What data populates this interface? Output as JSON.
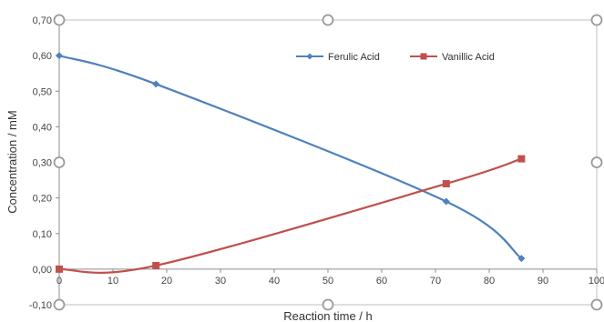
{
  "chart_data": {
    "type": "line",
    "title": "",
    "xlabel": "Reaction time / h",
    "ylabel": "Concentration / mM",
    "xlim": [
      0,
      100
    ],
    "ylim": [
      -0.1,
      0.7
    ],
    "x_ticks": [
      "0",
      "10",
      "20",
      "30",
      "40",
      "50",
      "60",
      "70",
      "80",
      "90",
      "100"
    ],
    "y_ticks": [
      "-0,10",
      "0,00",
      "0,10",
      "0,20",
      "0,30",
      "0,40",
      "0,50",
      "0,60",
      "0,70"
    ],
    "grid": false,
    "legend_position": "top-right",
    "series": [
      {
        "name": "Ferulic Acid",
        "color": "#4F81BD",
        "marker": "diamond",
        "x": [
          0,
          18,
          72,
          86
        ],
        "y": [
          0.6,
          0.52,
          0.19,
          0.03
        ]
      },
      {
        "name": "Vanillic Acid",
        "color": "#C0504D",
        "marker": "square",
        "x": [
          0,
          18,
          72,
          86
        ],
        "y": [
          0.0,
          0.01,
          0.24,
          0.31
        ]
      }
    ]
  }
}
